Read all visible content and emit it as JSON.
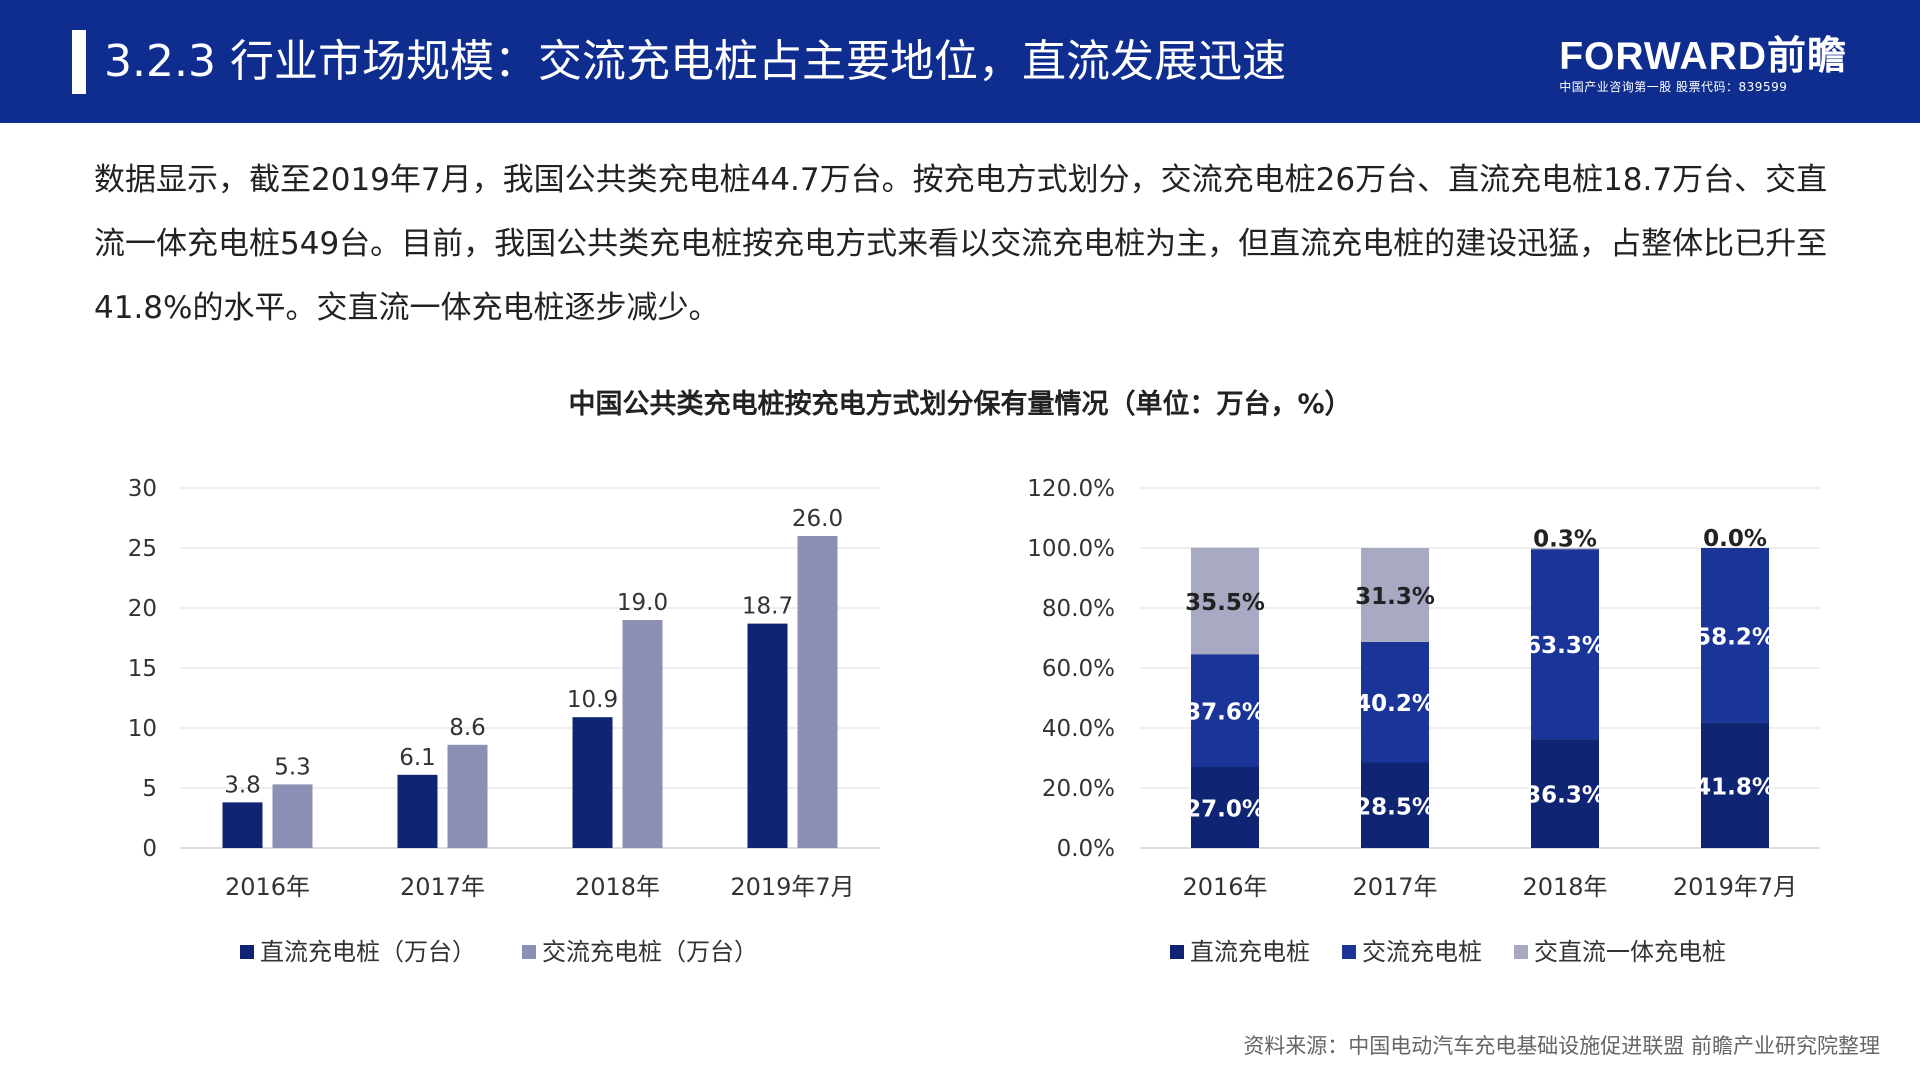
{
  "header": {
    "title": "3.2.3 行业市场规模：交流充电桩占主要地位，直流发展迅速",
    "logo_name": "FORWARD前瞻",
    "logo_tagline": "中国产业咨询第一股 股票代码：839599"
  },
  "body": {
    "paragraph": "数据显示，截至2019年7月，我国公共类充电桩44.7万台。按充电方式划分，交流充电桩26万台、直流充电桩18.7万台、交直流一体充电桩549台。目前，我国公共类充电桩按充电方式来看以交流充电桩为主，但直流充电桩的建设迅猛，占整体比已升至41.8%的水平。交直流一体充电桩逐步减少。"
  },
  "chart_title": "中国公共类充电桩按充电方式划分保有量情况（单位：万台，%）",
  "footer": {
    "source": "资料来源：中国电动汽车充电基础设施促进联盟 前瞻产业研究院整理"
  },
  "colors": {
    "header_bg": "#0f2d8f",
    "dc": "#0f2472",
    "ac": "#8b90b4",
    "ac_stack": "#1a3497",
    "acdc": "#a8aac4"
  },
  "chart_data": [
    {
      "type": "bar",
      "categories": [
        "2016年",
        "2017年",
        "2018年",
        "2019年7月"
      ],
      "series": [
        {
          "name": "直流充电桩（万台）",
          "values": [
            3.8,
            6.1,
            10.9,
            18.7
          ],
          "labels": [
            "3.8",
            "6.1",
            "10.9",
            "18.7"
          ]
        },
        {
          "name": "交流充电桩（万台）",
          "values": [
            5.3,
            8.6,
            19.0,
            26.0
          ],
          "labels": [
            "5.3",
            "8.6",
            "19.0",
            "26.0"
          ]
        }
      ],
      "yticks": [
        "0",
        "5",
        "10",
        "15",
        "20",
        "25",
        "30"
      ],
      "ylim": [
        0,
        30
      ],
      "grid": true,
      "legend": "bottom"
    },
    {
      "type": "bar",
      "stacked": true,
      "categories": [
        "2016年",
        "2017年",
        "2018年",
        "2019年7月"
      ],
      "series": [
        {
          "name": "直流充电桩",
          "values": [
            27.0,
            28.5,
            36.3,
            41.8
          ],
          "labels": [
            "27.0%",
            "28.5%",
            "36.3%",
            "41.8%"
          ]
        },
        {
          "name": "交流充电桩",
          "values": [
            37.6,
            40.2,
            63.3,
            58.2
          ],
          "labels": [
            "37.6%",
            "40.2%",
            "63.3%",
            "58.2%"
          ]
        },
        {
          "name": "交直流一体充电桩",
          "values": [
            35.5,
            31.3,
            0.3,
            0.0
          ],
          "labels": [
            "35.5%",
            "31.3%",
            "0.3%",
            "0.0%"
          ]
        }
      ],
      "yticks": [
        "0.0%",
        "20.0%",
        "40.0%",
        "60.0%",
        "80.0%",
        "100.0%",
        "120.0%"
      ],
      "ylim": [
        0,
        120
      ],
      "grid": true,
      "legend": "bottom"
    }
  ]
}
